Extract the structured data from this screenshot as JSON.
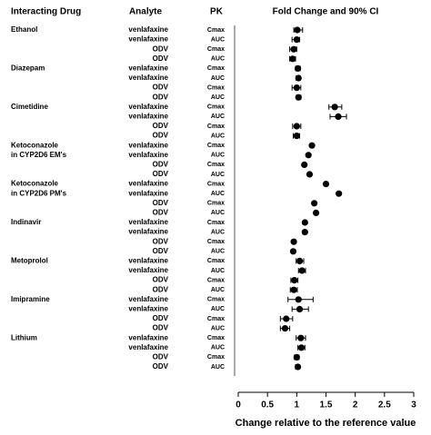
{
  "chart_data": {
    "type": "forest",
    "title": "Fold Change and 90% CI",
    "column_headers": [
      "Interacting Drug",
      "Analyte",
      "PK"
    ],
    "xlabel": "Change relative to the reference value",
    "xlim": [
      0,
      3
    ],
    "xticks": [
      0,
      0.5,
      1,
      1.5,
      2,
      2.5,
      3
    ],
    "drugs": [
      "Ethanol",
      null,
      null,
      null,
      "Diazepam",
      null,
      null,
      null,
      "Cimetidine",
      null,
      null,
      null,
      "Ketoconazole",
      "in CYP2D6 EM's",
      null,
      null,
      "Ketoconazole",
      "in CYP2D6 PM's",
      null,
      null,
      "Indinavir",
      null,
      null,
      null,
      "Metoprolol",
      null,
      null,
      null,
      "Imipramine",
      null,
      null,
      null,
      "Lithium",
      null,
      null,
      null
    ],
    "analytes": [
      "venlafaxine",
      "venlafaxine",
      "ODV",
      "ODV",
      "venlafaxine",
      "venlafaxine",
      "ODV",
      "ODV",
      "venlafaxine",
      "venlafaxine",
      "ODV",
      "ODV",
      "venlafaxine",
      "venlafaxine",
      "ODV",
      "ODV",
      "venlafaxine",
      "venlafaxine",
      "ODV",
      "ODV",
      "venlafaxine",
      "venlafaxine",
      "ODV",
      "ODV",
      "venlafaxine",
      "venlafaxine",
      "ODV",
      "ODV",
      "venlafaxine",
      "venlafaxine",
      "ODV",
      "ODV",
      "venlafaxine",
      "venlafaxine",
      "ODV",
      "ODV"
    ],
    "pk": [
      "Cmax",
      "AUC",
      "Cmax",
      "AUC",
      "Cmax",
      "AUC",
      "Cmax",
      "AUC",
      "Cmax",
      "AUC",
      "Cmax",
      "AUC",
      "Cmax",
      "AUC",
      "Cmax",
      "AUC",
      "Cmax",
      "AUC",
      "Cmax",
      "AUC",
      "Cmax",
      "AUC",
      "Cmax",
      "AUC",
      "Cmax",
      "AUC",
      "Cmax",
      "AUC",
      "Cmax",
      "AUC",
      "Cmax",
      "AUC",
      "Cmax",
      "AUC",
      "Cmax",
      "AUC"
    ],
    "values": [
      1.01,
      1.0,
      0.95,
      0.93,
      1.02,
      1.03,
      1.0,
      1.03,
      1.65,
      1.71,
      1.0,
      1.0,
      1.26,
      1.2,
      1.13,
      1.22,
      1.5,
      1.72,
      1.3,
      1.33,
      1.14,
      1.14,
      0.95,
      0.94,
      1.05,
      1.09,
      0.96,
      0.95,
      1.03,
      1.05,
      0.82,
      0.8,
      1.07,
      1.08,
      1.0,
      1.02
    ],
    "ci_low": [
      0.95,
      0.92,
      0.88,
      0.88,
      0.98,
      0.99,
      0.92,
      1.0,
      1.55,
      1.57,
      0.93,
      0.94,
      null,
      null,
      null,
      null,
      null,
      null,
      null,
      null,
      null,
      null,
      null,
      null,
      0.99,
      1.03,
      0.9,
      0.89,
      0.85,
      0.92,
      0.72,
      0.72,
      0.99,
      1.02,
      0.96,
      0.98
    ],
    "ci_high": [
      1.1,
      1.05,
      1.0,
      0.98,
      1.06,
      1.06,
      1.07,
      1.07,
      1.77,
      1.85,
      1.07,
      1.05,
      null,
      null,
      null,
      null,
      null,
      null,
      null,
      null,
      null,
      null,
      null,
      null,
      1.12,
      1.15,
      1.02,
      1.01,
      1.28,
      1.2,
      0.93,
      0.88,
      1.15,
      1.14,
      1.04,
      1.05
    ],
    "color": "#000000"
  }
}
